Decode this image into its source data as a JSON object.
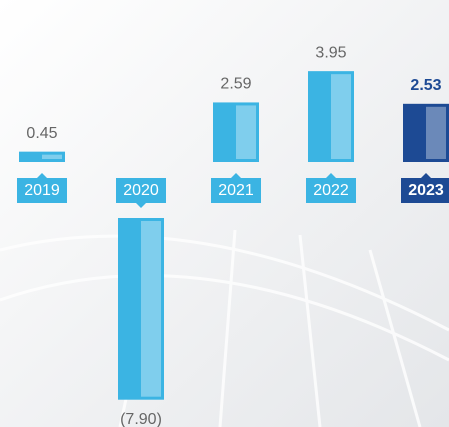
{
  "chart_data": {
    "type": "bar",
    "categories": [
      "2019",
      "2020",
      "2021",
      "2022",
      "2023"
    ],
    "values": [
      0.45,
      -7.9,
      2.59,
      3.95,
      2.53
    ],
    "value_labels": [
      "0.45",
      "(7.90)",
      "2.59",
      "3.95",
      "2.53"
    ],
    "colors": [
      "#3bb4e3",
      "#3bb4e3",
      "#3bb4e3",
      "#3bb4e3",
      "#1d4a94"
    ],
    "label_colors": [
      "#666666",
      "#666666",
      "#666666",
      "#666666",
      "#1d4a94"
    ]
  }
}
